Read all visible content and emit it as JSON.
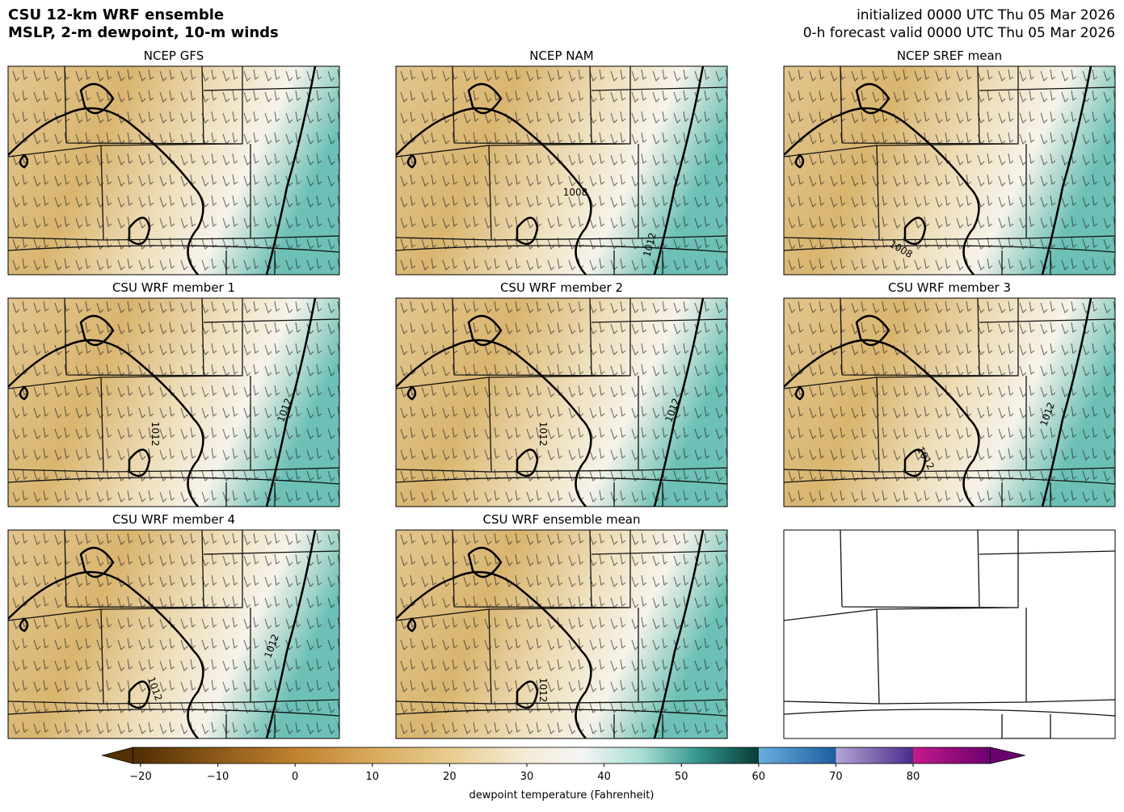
{
  "header": {
    "title": "CSU 12-km WRF ensemble",
    "subtitle": "MSLP, 2-m dewpoint, 10-m winds",
    "init": "initialized 0000 UTC Thu 05 Mar 2026",
    "valid": "0-h forecast valid 0000 UTC Thu 05 Mar 2026"
  },
  "panels": [
    {
      "title": "NCEP GFS",
      "contour_labels": []
    },
    {
      "title": "NCEP NAM",
      "contour_labels": [
        "1008",
        "1012"
      ]
    },
    {
      "title": "NCEP SREF mean",
      "contour_labels": [
        "1008"
      ]
    },
    {
      "title": "CSU WRF member 1",
      "contour_labels": [
        "1012",
        "1012"
      ]
    },
    {
      "title": "CSU WRF member 2",
      "contour_labels": [
        "1012",
        "1012"
      ]
    },
    {
      "title": "CSU WRF member 3",
      "contour_labels": [
        "1012",
        "1012"
      ]
    },
    {
      "title": "CSU WRF member 4",
      "contour_labels": [
        "1012",
        "1012"
      ]
    },
    {
      "title": "CSU WRF ensemble mean",
      "contour_labels": [
        "1012"
      ]
    }
  ],
  "colorbar": {
    "label": "dewpoint temperature (Fahrenheit)",
    "lim": [
      -21,
      90
    ],
    "ticks": [
      {
        "value": -20,
        "label": "−20"
      },
      {
        "value": -10,
        "label": "−10"
      },
      0,
      10,
      20,
      30,
      40,
      50,
      60,
      70,
      80
    ],
    "color_stops": [
      {
        "value": -20,
        "color": "#543005"
      },
      {
        "value": -10,
        "color": "#8c5a18"
      },
      {
        "value": 0,
        "color": "#bf812d"
      },
      {
        "value": 10,
        "color": "#d8aa5c"
      },
      {
        "value": 20,
        "color": "#e8cc8f"
      },
      {
        "value": 30,
        "color": "#f5ecd6"
      },
      {
        "value": 37,
        "color": "#f5f5f5"
      },
      {
        "value": 45,
        "color": "#a8ddd4"
      },
      {
        "value": 52,
        "color": "#35978f"
      },
      {
        "value": 60,
        "color": "#063d35"
      },
      {
        "value": 60,
        "color": "#6aaee0"
      },
      {
        "value": 70,
        "color": "#1d5f9e"
      },
      {
        "value": 70,
        "color": "#b3a6d5"
      },
      {
        "value": 80,
        "color": "#4b2a8c"
      },
      {
        "value": 80,
        "color": "#c51b8a"
      },
      {
        "value": 90,
        "color": "#6a006e"
      }
    ]
  }
}
